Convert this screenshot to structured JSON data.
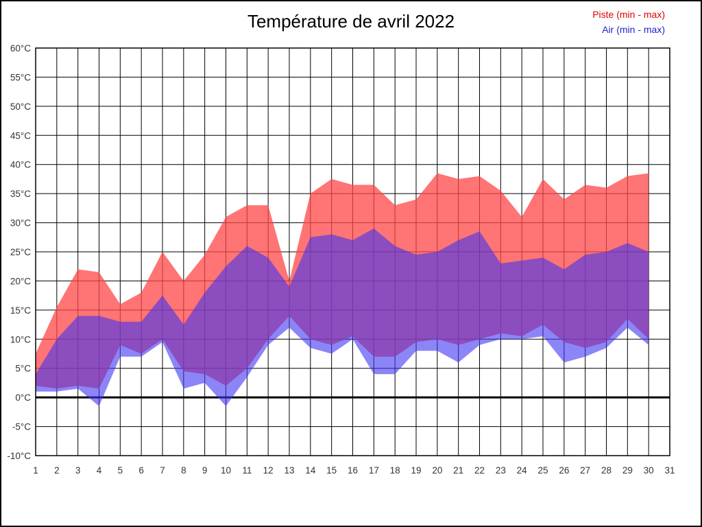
{
  "figure": {
    "title": "Température de avril 2022",
    "background_color": "#ffffff",
    "border_color": "#000000"
  },
  "legend": [
    {
      "label": "Piste (min - max)",
      "color": "#e00000"
    },
    {
      "label": "Air (min - max)",
      "color": "#2222cc"
    }
  ],
  "chart_data": {
    "type": "area",
    "title": "Température de avril 2022",
    "xlabel": "",
    "ylabel": "",
    "xlim": [
      1,
      31
    ],
    "ylim": [
      -10,
      60
    ],
    "grid": true,
    "grid_color": "#000000",
    "zero_line_value": 0,
    "x": [
      1,
      2,
      3,
      4,
      5,
      6,
      7,
      8,
      9,
      10,
      11,
      12,
      13,
      14,
      15,
      16,
      17,
      18,
      19,
      20,
      21,
      22,
      23,
      24,
      25,
      26,
      27,
      28,
      29,
      30
    ],
    "x_tick_labels": [
      "1",
      "2",
      "3",
      "4",
      "5",
      "6",
      "7",
      "8",
      "9",
      "10",
      "11",
      "12",
      "13",
      "14",
      "15",
      "16",
      "17",
      "18",
      "19",
      "20",
      "21",
      "22",
      "23",
      "24",
      "25",
      "26",
      "27",
      "28",
      "29",
      "30",
      "31"
    ],
    "y_tick_values": [
      -10,
      -5,
      0,
      5,
      10,
      15,
      20,
      25,
      30,
      35,
      40,
      45,
      50,
      55,
      60
    ],
    "y_tick_labels": [
      "-10°C",
      "-5°C",
      "0°C",
      "5°C",
      "10°C",
      "15°C",
      "20°C",
      "25°C",
      "30°C",
      "35°C",
      "40°C",
      "45°C",
      "50°C",
      "55°C",
      "60°C"
    ],
    "bands": [
      {
        "name": "Piste (min - max)",
        "legend_color": "#e00000",
        "fill": "rgba(255,70,70,0.75)",
        "max": [
          7.5,
          15.5,
          22,
          21.5,
          16,
          18,
          25,
          20,
          24.5,
          31,
          33,
          33,
          20,
          35,
          37.5,
          36.5,
          36.5,
          33,
          34,
          38.5,
          37.5,
          38,
          35.5,
          31,
          37.5,
          34,
          36.5,
          36,
          38,
          38.5
        ],
        "min": [
          2,
          1.5,
          2,
          1.5,
          9,
          7.5,
          10,
          4.5,
          4,
          2,
          5,
          10,
          14,
          10,
          9,
          10.5,
          7,
          7,
          9.5,
          10,
          9,
          10,
          11,
          10.5,
          12.5,
          9.5,
          8.5,
          9.5,
          13.5,
          10
        ]
      },
      {
        "name": "Air (min - max)",
        "legend_color": "#2222cc",
        "fill": "rgba(64,52,242,0.60)",
        "max": [
          4,
          10,
          14,
          14,
          13,
          13,
          17.5,
          12.5,
          18,
          22.5,
          26,
          24,
          19,
          27.5,
          28,
          27,
          29,
          26,
          24.5,
          25,
          27,
          28.5,
          23,
          23.5,
          24,
          22,
          24.5,
          25,
          26.5,
          25
        ],
        "min": [
          1,
          1,
          1.5,
          -1.5,
          7,
          7,
          9.5,
          1.5,
          2.5,
          -1.5,
          3.5,
          9,
          12,
          8.5,
          7.5,
          10,
          4,
          4,
          8,
          8,
          6,
          9,
          10,
          10,
          10.5,
          6,
          7,
          8.5,
          12,
          9
        ]
      }
    ]
  }
}
